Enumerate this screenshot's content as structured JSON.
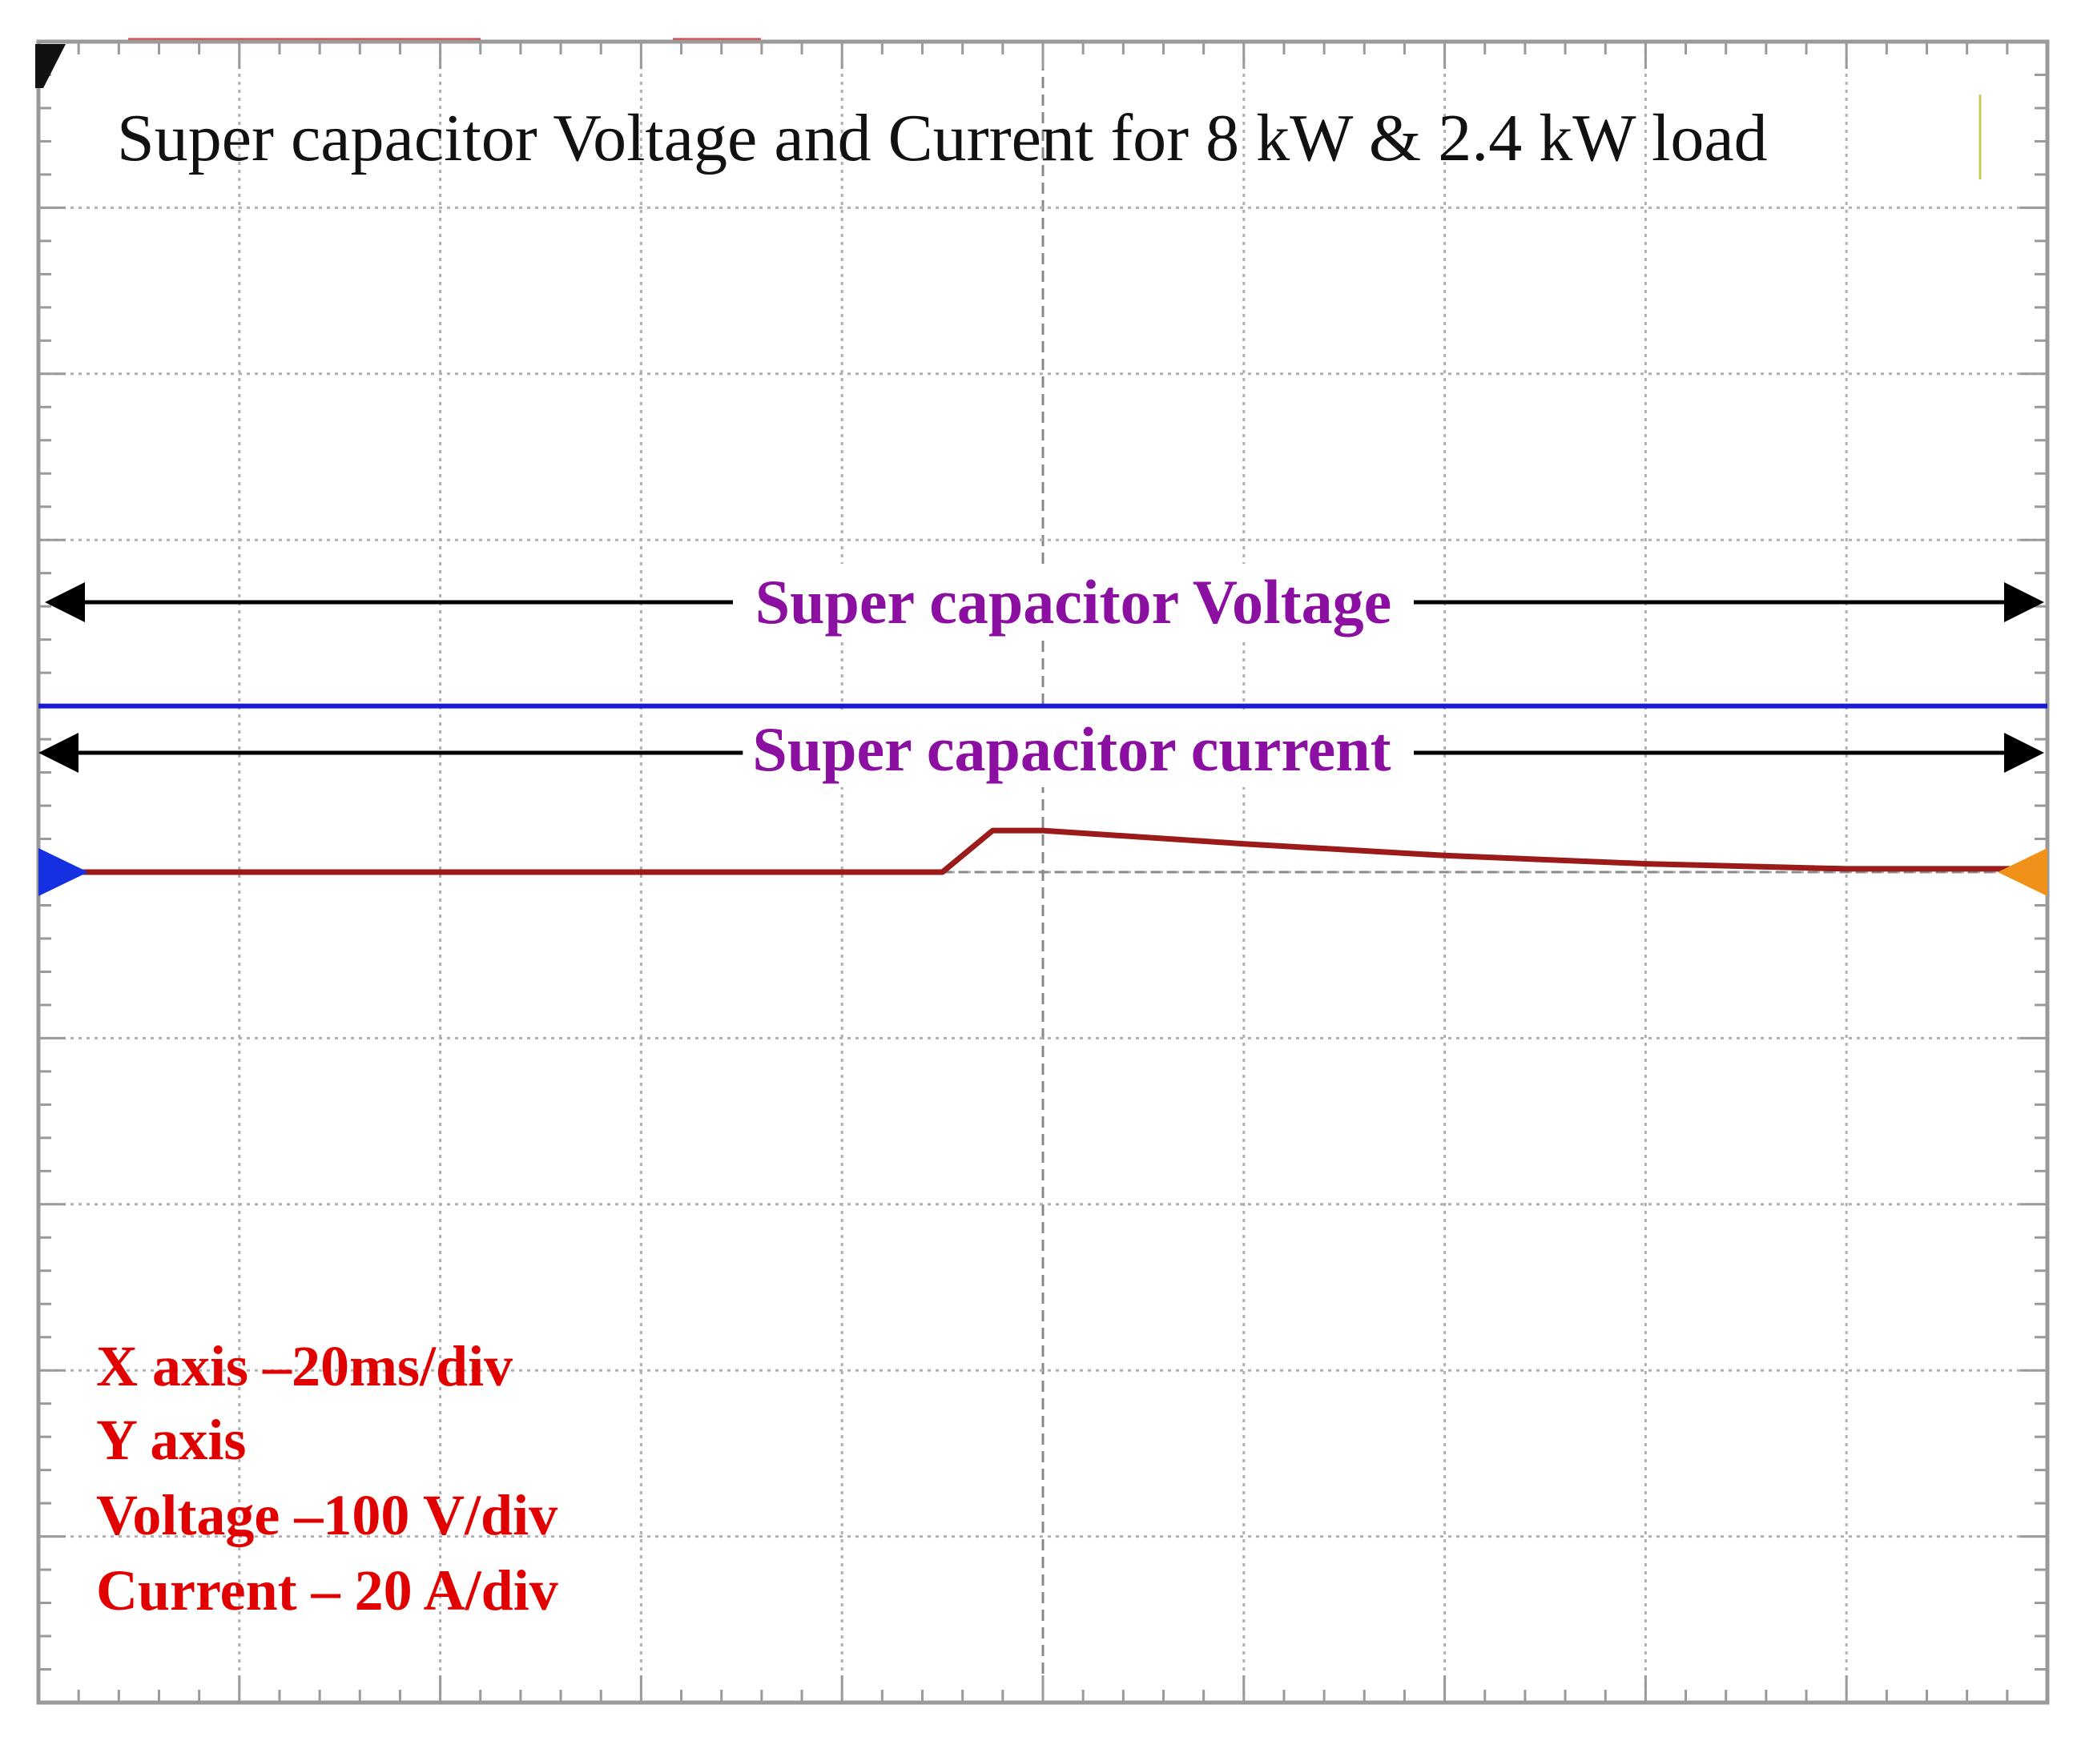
{
  "chart_data": {
    "type": "line",
    "title": "Super capacitor Voltage and Current for 8 kW & 2.4 kW load",
    "grid": true,
    "divisions": {
      "x": 10,
      "y": 10
    },
    "xlim": [
      0,
      10
    ],
    "ylim": [
      0,
      10
    ],
    "series": [
      {
        "name": "Super capacitor Voltage",
        "color": "#1a1ad6",
        "x": [
          0,
          10
        ],
        "y": [
          6.0,
          6.0
        ]
      },
      {
        "name": "Super capacitor current",
        "color": "#9b1b1b",
        "x": [
          0.2,
          4.5,
          4.75,
          5.0,
          6.0,
          7.0,
          8.0,
          9.0,
          10.0
        ],
        "y": [
          5.0,
          5.0,
          5.25,
          5.25,
          5.17,
          5.1,
          5.05,
          5.02,
          5.02
        ]
      }
    ],
    "annotations": {
      "voltage_label": "Super capacitor Voltage",
      "current_label": "Super capacitor current"
    },
    "scale_info": [
      "X axis –20ms/div",
      "Y axis",
      "Voltage –100 V/div",
      "Current – 20 A/div"
    ],
    "colors": {
      "annotation_text": "#8b0fa0",
      "scale_text": "#e00000",
      "grid": "#b0b0b0",
      "frame": "#9a9a9a",
      "voltage_marker": "#1430e0",
      "current_marker": "#f0921a"
    }
  }
}
